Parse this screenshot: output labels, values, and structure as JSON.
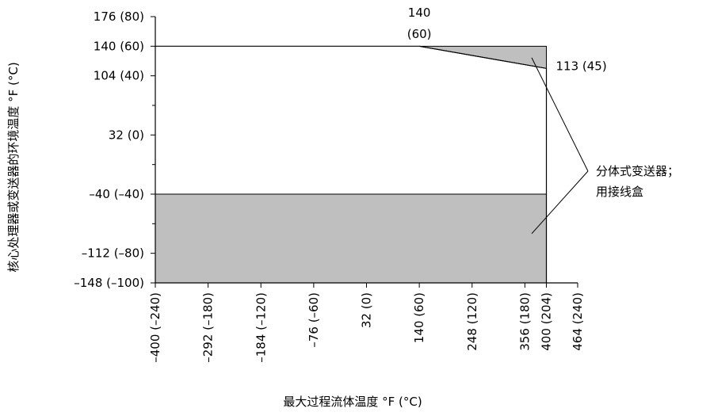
{
  "chart_data": {
    "type": "area",
    "xlabel": "最大过程流体温度 °F (°C)",
    "ylabel": "核心处理器或变送器的环境温度 °F (°C)",
    "xlim": [
      -400,
      464
    ],
    "ylim": [
      -148,
      176
    ],
    "x_ticks": [
      {
        "value": -400,
        "label": "–400 (–240)"
      },
      {
        "value": -292,
        "label": "–292 (–180)"
      },
      {
        "value": -184,
        "label": "–184 (–120)"
      },
      {
        "value": -76,
        "label": "–76 (–60)"
      },
      {
        "value": 32,
        "label": "32 (0)"
      },
      {
        "value": 140,
        "label": "140 (60)"
      },
      {
        "value": 248,
        "label": "248 (120)"
      },
      {
        "value": 356,
        "label": "356 (180)"
      },
      {
        "value": 400,
        "label": "400 (204)"
      },
      {
        "value": 464,
        "label": "464 (240)"
      }
    ],
    "y_ticks": [
      {
        "value": 176,
        "label": "176 (80)"
      },
      {
        "value": 140,
        "label": "140 (60)"
      },
      {
        "value": 104,
        "label": "104 (40)"
      },
      {
        "value": 32,
        "label": "32 (0)"
      },
      {
        "value": -40,
        "label": "–40 (–40)"
      },
      {
        "value": -112,
        "label": "–112 (–80)"
      },
      {
        "value": -148,
        "label": "–148 (–100)"
      }
    ],
    "y_minor_ticks": [
      68,
      -4,
      -76
    ],
    "boundary": [
      [
        -400,
        140
      ],
      [
        140,
        140
      ],
      [
        400,
        113
      ],
      [
        400,
        -148
      ]
    ],
    "shaded_regions": [
      {
        "points": [
          [
            140,
            140
          ],
          [
            400,
            140
          ],
          [
            400,
            113
          ]
        ]
      },
      {
        "points": [
          [
            -400,
            -40
          ],
          [
            400,
            -40
          ],
          [
            400,
            -148
          ],
          [
            -400,
            -148
          ]
        ]
      }
    ],
    "annotations": [
      {
        "at": [
          140,
          140
        ],
        "line1": "140",
        "line2": "(60)"
      },
      {
        "at": [
          400,
          113
        ],
        "text": "113 (45)"
      }
    ],
    "callout": {
      "line1": "分体式变送器；",
      "line2": "用接线盒",
      "points_to": [
        [
          370,
          126
        ],
        [
          370,
          -88
        ]
      ]
    },
    "fill_color": "#bfbfbf",
    "line_color": "#000000"
  }
}
